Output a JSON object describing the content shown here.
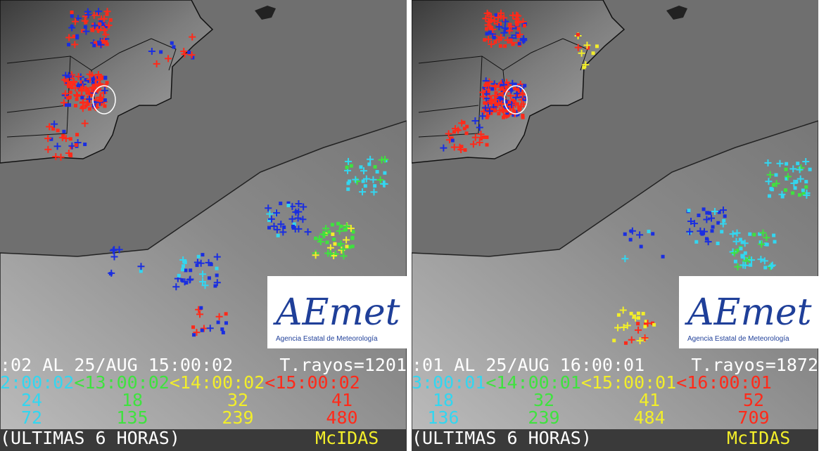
{
  "panels": [
    {
      "header": ":02 AL 25/AUG 15:00:02",
      "total": "T.rayos=1201",
      "legend": [
        "2:00:02",
        "<13:00:02",
        "<14:00:02",
        "<15:00:02"
      ],
      "counts": [
        "24",
        "18",
        "32",
        "41"
      ],
      "totals": [
        "72",
        "135",
        "239",
        "480"
      ],
      "footer": "(ULTIMAS 6 HORAS)",
      "software": "McIDAS",
      "logo": {
        "name": "AEmet",
        "subtitle": "Agencia Estatal de Meteorología"
      }
    },
    {
      "header": ":01 AL 25/AUG 16:00:01",
      "total": "T.rayos=1872",
      "legend": [
        "3:00:01",
        "<14:00:01",
        "<15:00:01",
        "<16:00:01"
      ],
      "counts": [
        "18",
        "32",
        "41",
        "52"
      ],
      "totals": [
        "136",
        "239",
        "484",
        "709"
      ],
      "footer": "(ULTIMAS 6 HORAS)",
      "software": "McIDAS",
      "logo": {
        "name": "AEmet",
        "subtitle": "Agencia Estatal de Meteorología"
      }
    }
  ]
}
